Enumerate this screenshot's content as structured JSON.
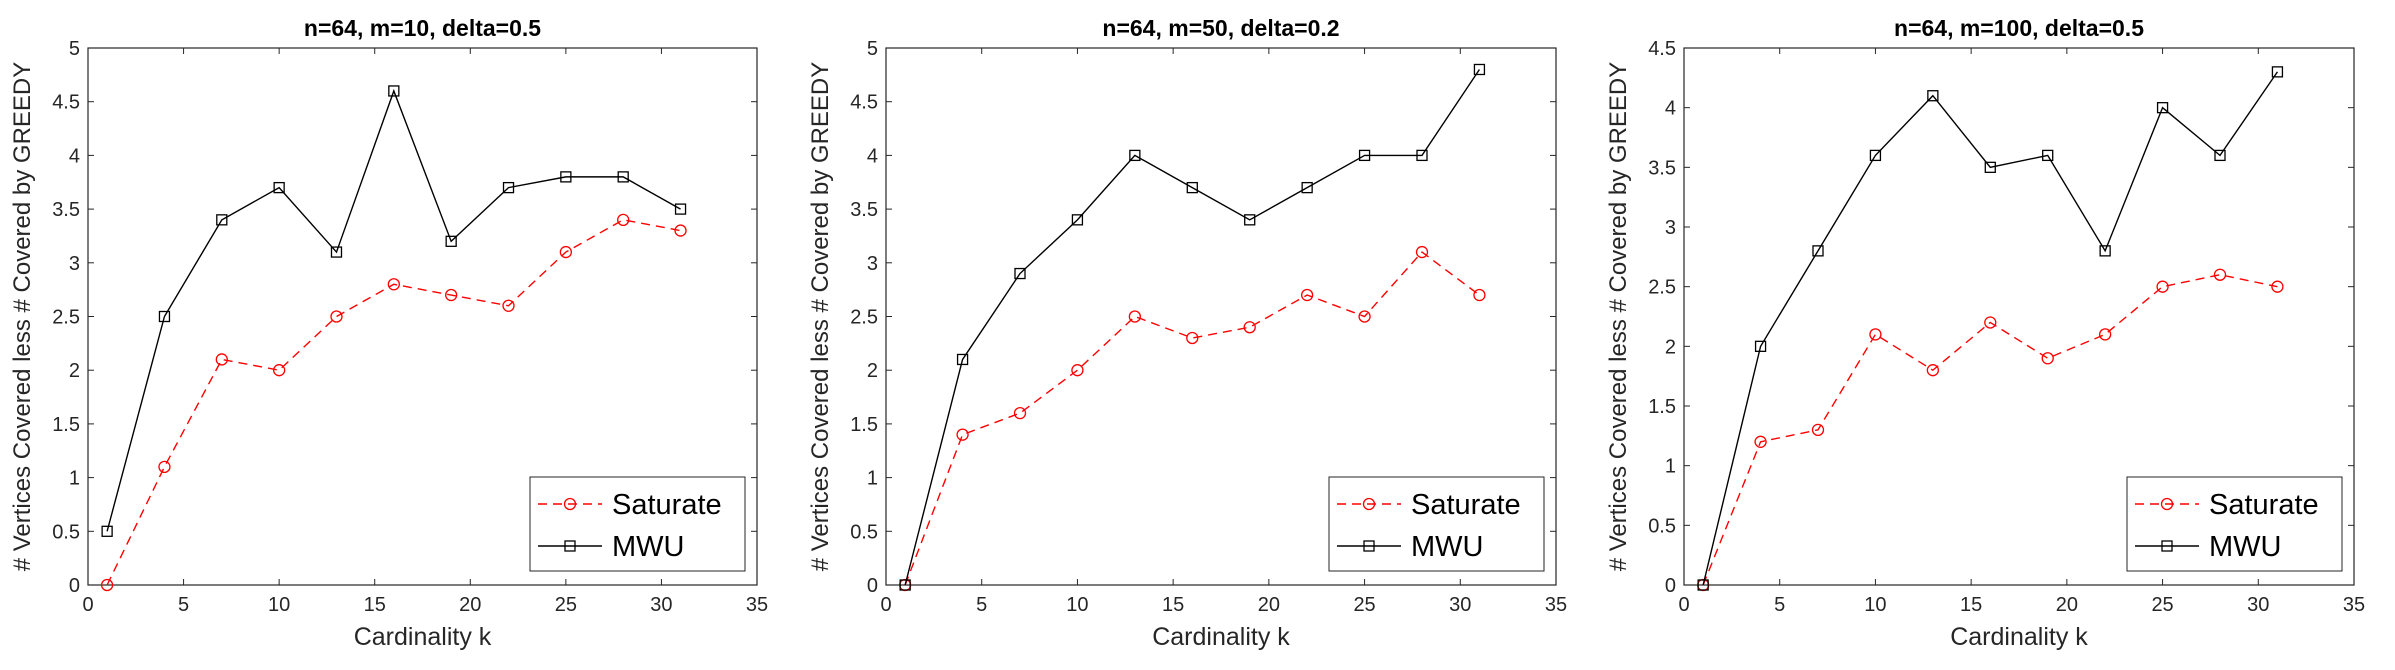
{
  "chart_data": [
    {
      "type": "line",
      "title": "n=64, m=10, delta=0.5",
      "xlabel": "Cardinality k",
      "ylabel": "# Vertices Covered less # Covered by GREEDY",
      "xlim": [
        0,
        35
      ],
      "ylim": [
        0,
        5
      ],
      "xticks": [
        0,
        5,
        10,
        15,
        20,
        25,
        30,
        35
      ],
      "yticks": [
        0,
        0.5,
        1,
        1.5,
        2,
        2.5,
        3,
        3.5,
        4,
        4.5,
        5
      ],
      "x": [
        1,
        4,
        7,
        10,
        13,
        16,
        19,
        22,
        25,
        28,
        31
      ],
      "series": [
        {
          "name": "Saturate",
          "color": "#ff0000",
          "dash": "dashed",
          "marker": "circle",
          "values": [
            0,
            1.1,
            2.1,
            2.0,
            2.5,
            2.8,
            2.7,
            2.6,
            3.1,
            3.4,
            3.3
          ]
        },
        {
          "name": "MWU",
          "color": "#000000",
          "dash": "solid",
          "marker": "square",
          "values": [
            0.5,
            2.5,
            3.4,
            3.7,
            3.1,
            4.6,
            3.2,
            3.7,
            3.8,
            3.8,
            3.5
          ]
        }
      ],
      "legend_position": "bottom-right",
      "grid": false
    },
    {
      "type": "line",
      "title": "n=64, m=50, delta=0.2",
      "xlabel": "Cardinality k",
      "ylabel": "# Vertices Covered less # Covered by GREEDY",
      "xlim": [
        0,
        35
      ],
      "ylim": [
        0,
        5
      ],
      "xticks": [
        0,
        5,
        10,
        15,
        20,
        25,
        30,
        35
      ],
      "yticks": [
        0,
        0.5,
        1,
        1.5,
        2,
        2.5,
        3,
        3.5,
        4,
        4.5,
        5
      ],
      "x": [
        1,
        4,
        7,
        10,
        13,
        16,
        19,
        22,
        25,
        28,
        31
      ],
      "series": [
        {
          "name": "Saturate",
          "color": "#ff0000",
          "dash": "dashed",
          "marker": "circle",
          "values": [
            0,
            1.4,
            1.6,
            2.0,
            2.5,
            2.3,
            2.4,
            2.7,
            2.5,
            3.1,
            2.7
          ]
        },
        {
          "name": "MWU",
          "color": "#000000",
          "dash": "solid",
          "marker": "square",
          "values": [
            0,
            2.1,
            2.9,
            3.4,
            4.0,
            3.7,
            3.4,
            3.7,
            4.0,
            4.0,
            4.8
          ]
        }
      ],
      "legend_position": "bottom-right",
      "grid": false
    },
    {
      "type": "line",
      "title": "n=64, m=100, delta=0.5",
      "xlabel": "Cardinality k",
      "ylabel": "# Vertices Covered less # Covered by GREEDY",
      "xlim": [
        0,
        35
      ],
      "ylim": [
        0,
        4.5
      ],
      "xticks": [
        0,
        5,
        10,
        15,
        20,
        25,
        30,
        35
      ],
      "yticks": [
        0,
        0.5,
        1,
        1.5,
        2,
        2.5,
        3,
        3.5,
        4,
        4.5
      ],
      "x": [
        1,
        4,
        7,
        10,
        13,
        16,
        19,
        22,
        25,
        28,
        31
      ],
      "series": [
        {
          "name": "Saturate",
          "color": "#ff0000",
          "dash": "dashed",
          "marker": "circle",
          "values": [
            0,
            1.2,
            1.3,
            2.1,
            1.8,
            2.2,
            1.9,
            2.1,
            2.5,
            2.6,
            2.5
          ]
        },
        {
          "name": "MWU",
          "color": "#000000",
          "dash": "solid",
          "marker": "square",
          "values": [
            0,
            2.0,
            2.8,
            3.6,
            4.1,
            3.5,
            3.6,
            2.8,
            4.0,
            3.6,
            4.3
          ]
        }
      ],
      "legend_position": "bottom-right",
      "grid": false
    }
  ]
}
